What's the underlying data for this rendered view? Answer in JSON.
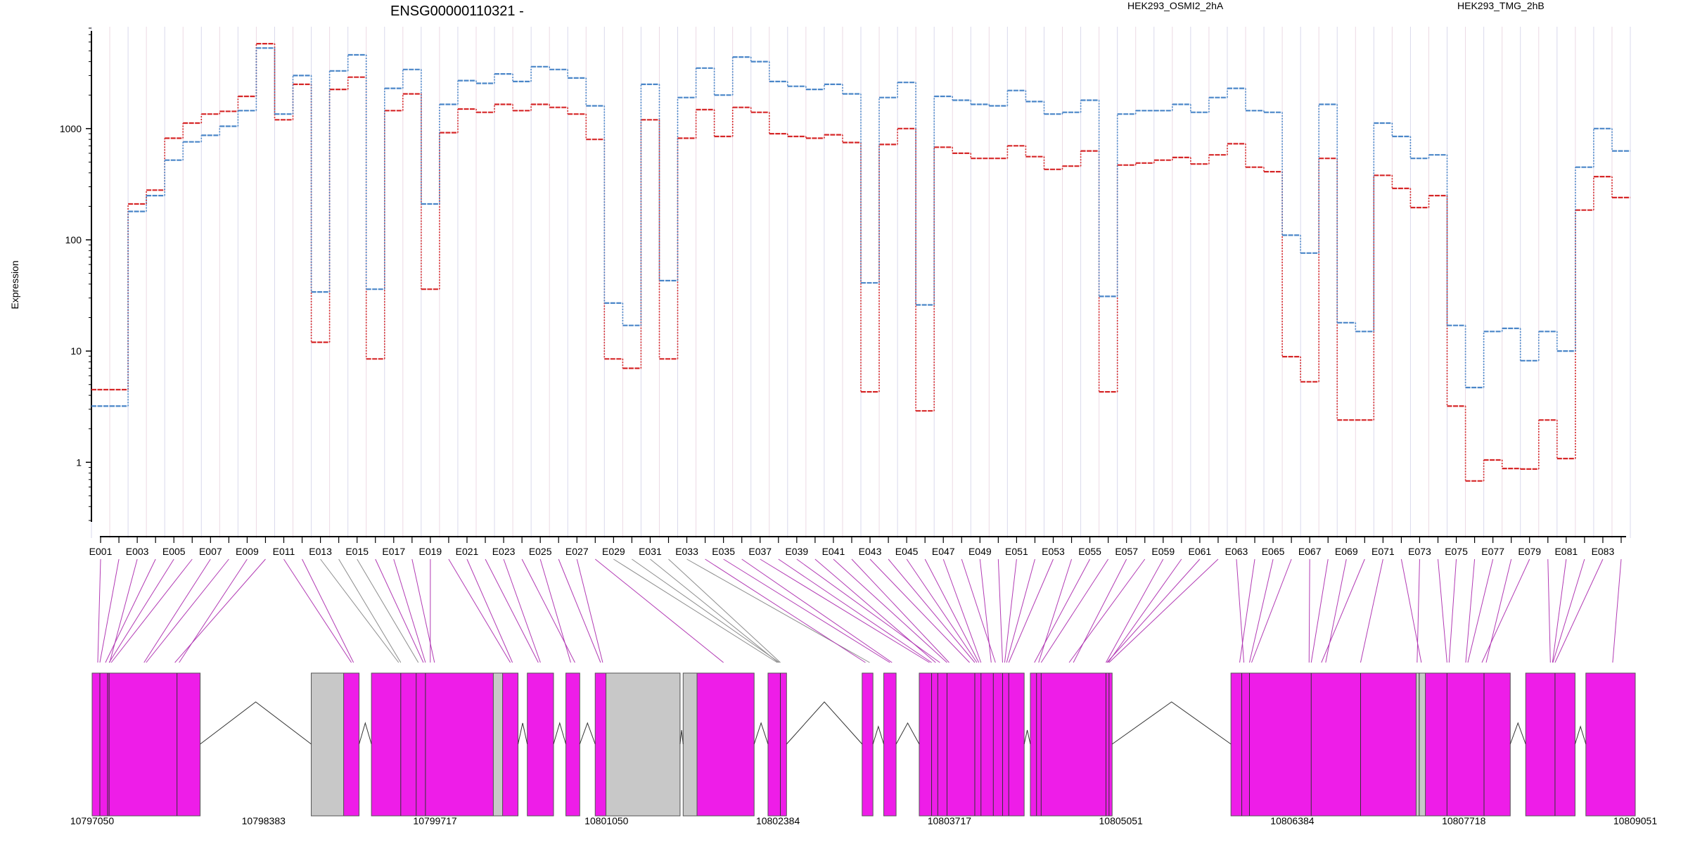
{
  "chart_data": {
    "type": "line",
    "title": "ENSG00000110321 -",
    "ylabel": "Expression",
    "yscale": "log",
    "ylim": [
      0.3,
      8000
    ],
    "yticks": [
      1,
      10,
      100,
      1000
    ],
    "ytick_labels": [
      "1",
      "10",
      "100",
      "1000"
    ],
    "legend_placement": "top",
    "categories": [
      "E001",
      "E002",
      "E003",
      "E004",
      "E005",
      "E006",
      "E007",
      "E008",
      "E009",
      "E010",
      "E011",
      "E012",
      "E013",
      "E014",
      "E015",
      "E016",
      "E017",
      "E018",
      "E019",
      "E020",
      "E021",
      "E022",
      "E023",
      "E024",
      "E025",
      "E026",
      "E027",
      "E028",
      "E029",
      "E030",
      "E031",
      "E032",
      "E033",
      "E034",
      "E035",
      "E036",
      "E037",
      "E038",
      "E039",
      "E040",
      "E041",
      "E042",
      "E043",
      "E044",
      "E045",
      "E046",
      "E047",
      "E048",
      "E049",
      "E050",
      "E051",
      "E052",
      "E053",
      "E054",
      "E055",
      "E056",
      "E057",
      "E058",
      "E059",
      "E060",
      "E061",
      "E062",
      "E063",
      "E064",
      "E065",
      "E066",
      "E067",
      "E068",
      "E069",
      "E070",
      "E071",
      "E072",
      "E073",
      "E074",
      "E075",
      "E076",
      "E077",
      "E078",
      "E079",
      "E080",
      "E081",
      "E082",
      "E083",
      "E084"
    ],
    "xtick_labels": [
      "E001",
      "E003",
      "E005",
      "E007",
      "E009",
      "E011",
      "E013",
      "E015",
      "E017",
      "E019",
      "E021",
      "E023",
      "E025",
      "E027",
      "E029",
      "E031",
      "E033",
      "E035",
      "E037",
      "E039",
      "E041",
      "E043",
      "E045",
      "E047",
      "E049",
      "E051",
      "E053",
      "E055",
      "E057",
      "E059",
      "E061",
      "E063",
      "E065",
      "E067",
      "E069",
      "E071",
      "E073",
      "E075",
      "E077",
      "E079",
      "E081",
      "E083"
    ],
    "series": [
      {
        "name": "HEK293_OSMI2_2hA",
        "color": "#d62728",
        "values": [
          4.5,
          4.5,
          210,
          280,
          820,
          1120,
          1350,
          1430,
          1950,
          5800,
          1200,
          2500,
          12,
          2250,
          2900,
          8.5,
          1450,
          2050,
          36,
          920,
          1500,
          1400,
          1650,
          1450,
          1650,
          1550,
          1350,
          800,
          8.5,
          7,
          1200,
          8.5,
          820,
          1480,
          850,
          1550,
          1400,
          900,
          850,
          820,
          880,
          750,
          4.3,
          720,
          1000,
          2.9,
          680,
          600,
          540,
          540,
          700,
          560,
          430,
          460,
          630,
          4.3,
          470,
          490,
          520,
          550,
          480,
          580,
          730,
          450,
          410,
          8.9,
          5.3,
          540,
          2.4,
          2.4,
          380,
          290,
          195,
          250,
          3.2,
          0.68,
          1.05,
          0.88,
          0.87,
          2.4,
          1.08,
          185,
          370,
          240
        ]
      },
      {
        "name": "HEK293_TMG_2hB",
        "color": "#4a86c8",
        "values": [
          3.2,
          3.2,
          180,
          250,
          520,
          760,
          870,
          1050,
          1450,
          5300,
          1350,
          3000,
          34,
          3300,
          4600,
          36,
          2300,
          3400,
          210,
          1650,
          2700,
          2550,
          3100,
          2650,
          3600,
          3400,
          2850,
          1600,
          27,
          17,
          2500,
          43,
          1900,
          3500,
          2000,
          4400,
          4000,
          2650,
          2400,
          2250,
          2500,
          2050,
          41,
          1900,
          2600,
          26,
          1950,
          1800,
          1650,
          1600,
          2200,
          1750,
          1350,
          1400,
          1800,
          31,
          1350,
          1450,
          1450,
          1650,
          1400,
          1900,
          2300,
          1450,
          1400,
          110,
          76,
          1650,
          18,
          15,
          1120,
          850,
          540,
          580,
          17,
          4.7,
          15,
          16,
          8.2,
          15,
          10,
          450,
          1000,
          630
        ]
      }
    ],
    "genomic_axis": {
      "tick_labels": [
        "10797050",
        "10798383",
        "10799717",
        "10801050",
        "10802384",
        "10803717",
        "10805051",
        "10806384",
        "10807718",
        "10809051"
      ]
    }
  }
}
